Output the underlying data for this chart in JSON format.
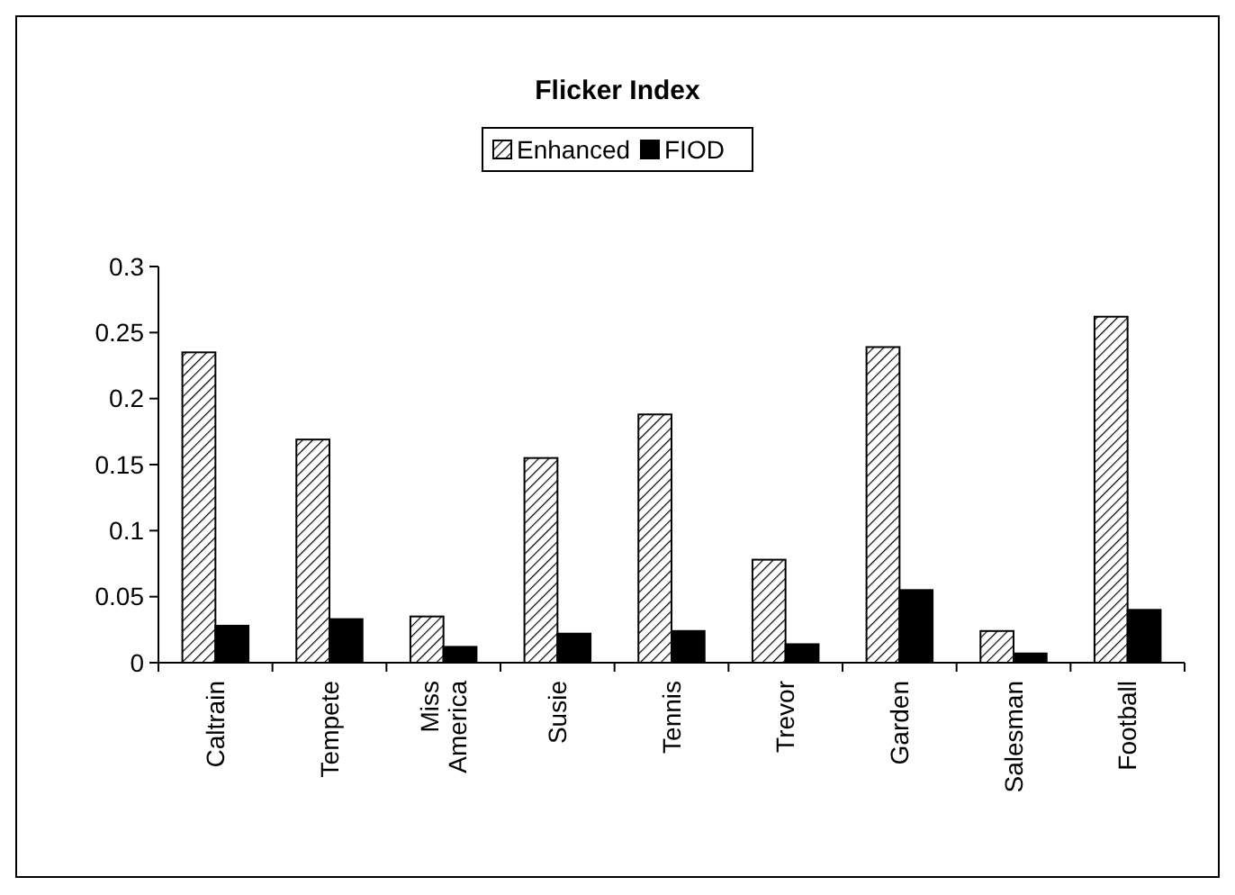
{
  "chart_data": {
    "type": "bar",
    "title": "Flicker Index",
    "categories": [
      "Caltrain",
      "Tempete",
      "Miss America",
      "Susie",
      "Tennis",
      "Trevor",
      "Garden",
      "Salesman",
      "Football"
    ],
    "series": [
      {
        "name": "Enhanced",
        "color": "#000000",
        "values": [
          0.235,
          0.169,
          0.035,
          0.155,
          0.188,
          0.078,
          0.239,
          0.024,
          0.262
        ]
      },
      {
        "name": "FIOD",
        "color": "#000000",
        "values": [
          0.028,
          0.033,
          0.012,
          0.022,
          0.024,
          0.014,
          0.055,
          0.007,
          0.04
        ]
      }
    ],
    "ylim": [
      0,
      0.3
    ],
    "yticks": [
      0,
      0.05,
      0.1,
      0.15,
      0.2,
      0.25,
      0.3
    ],
    "grid": false,
    "legend": "top"
  }
}
